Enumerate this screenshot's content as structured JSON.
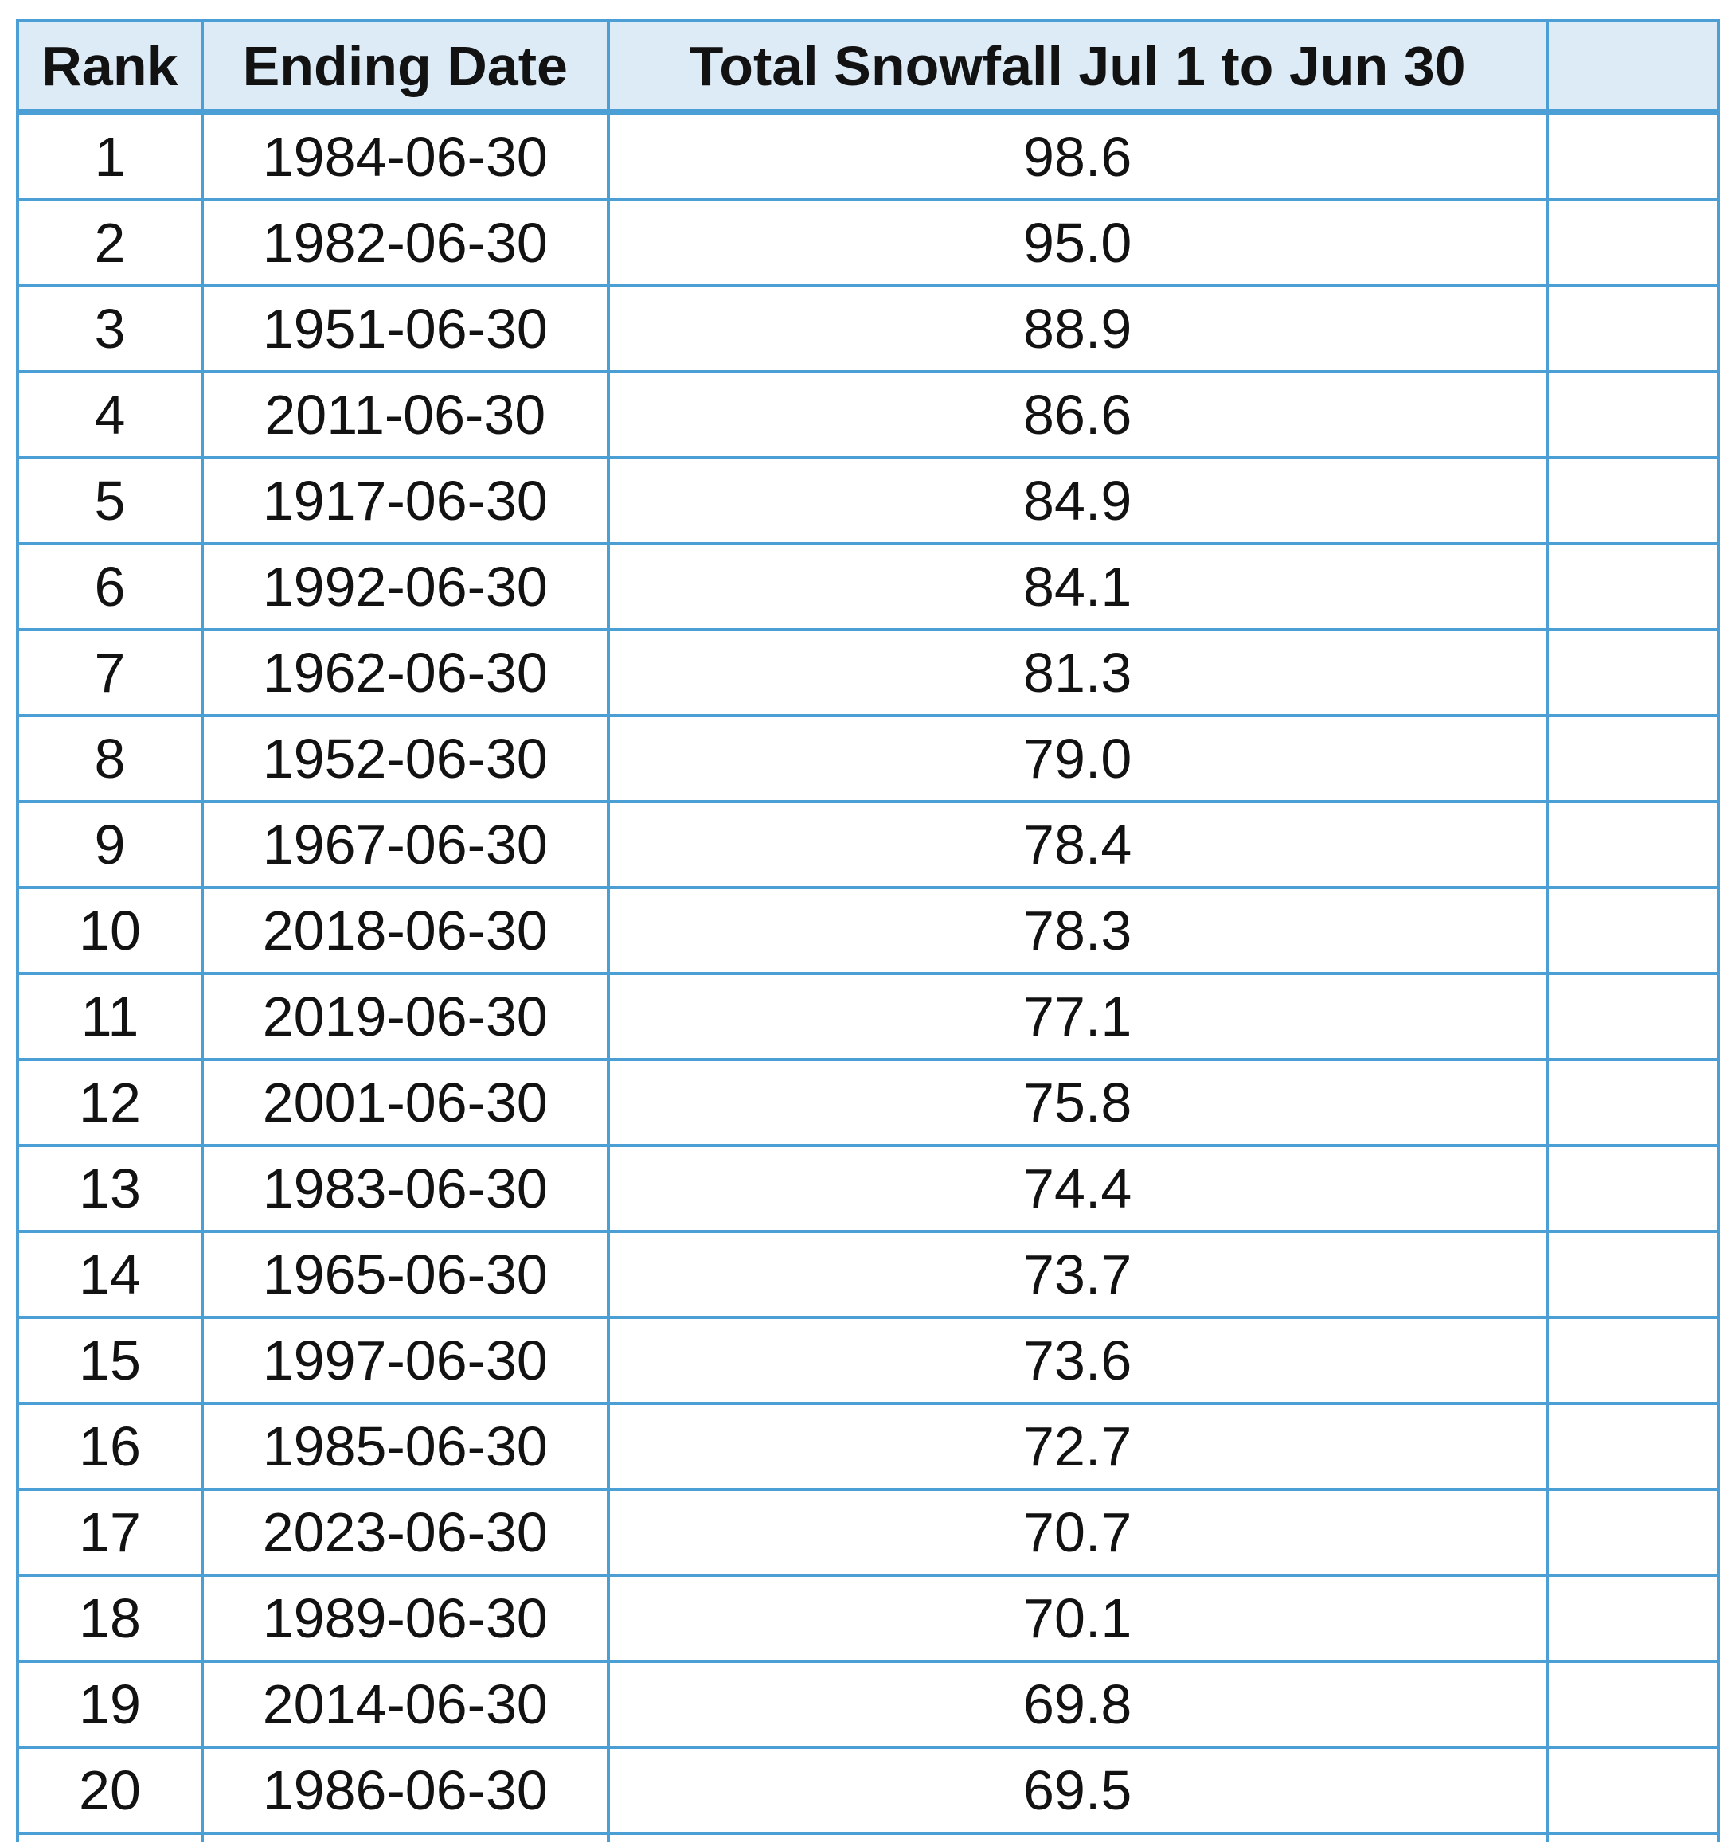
{
  "table": {
    "columns": [
      {
        "key": "rank",
        "label": "Rank"
      },
      {
        "key": "ending_date",
        "label": "Ending Date"
      },
      {
        "key": "total_snowfall",
        "label": "Total Snowfall Jul 1 to Jun 30"
      },
      {
        "key": "extra",
        "label": ""
      }
    ],
    "rows": [
      {
        "rank": "1",
        "ending_date": "1984-06-30",
        "total_snowfall": "98.6"
      },
      {
        "rank": "2",
        "ending_date": "1982-06-30",
        "total_snowfall": "95.0"
      },
      {
        "rank": "3",
        "ending_date": "1951-06-30",
        "total_snowfall": "88.9"
      },
      {
        "rank": "4",
        "ending_date": "2011-06-30",
        "total_snowfall": "86.6"
      },
      {
        "rank": "5",
        "ending_date": "1917-06-30",
        "total_snowfall": "84.9"
      },
      {
        "rank": "6",
        "ending_date": "1992-06-30",
        "total_snowfall": "84.1"
      },
      {
        "rank": "7",
        "ending_date": "1962-06-30",
        "total_snowfall": "81.3"
      },
      {
        "rank": "8",
        "ending_date": "1952-06-30",
        "total_snowfall": "79.0"
      },
      {
        "rank": "9",
        "ending_date": "1967-06-30",
        "total_snowfall": "78.4"
      },
      {
        "rank": "10",
        "ending_date": "2018-06-30",
        "total_snowfall": "78.3"
      },
      {
        "rank": "11",
        "ending_date": "2019-06-30",
        "total_snowfall": "77.1"
      },
      {
        "rank": "12",
        "ending_date": "2001-06-30",
        "total_snowfall": "75.8"
      },
      {
        "rank": "13",
        "ending_date": "1983-06-30",
        "total_snowfall": "74.4"
      },
      {
        "rank": "14",
        "ending_date": "1965-06-30",
        "total_snowfall": "73.7"
      },
      {
        "rank": "15",
        "ending_date": "1997-06-30",
        "total_snowfall": "73.6"
      },
      {
        "rank": "16",
        "ending_date": "1985-06-30",
        "total_snowfall": "72.7"
      },
      {
        "rank": "17",
        "ending_date": "2023-06-30",
        "total_snowfall": "70.7"
      },
      {
        "rank": "18",
        "ending_date": "1989-06-30",
        "total_snowfall": "70.1"
      },
      {
        "rank": "19",
        "ending_date": "2014-06-30",
        "total_snowfall": "69.8"
      },
      {
        "rank": "20",
        "ending_date": "1986-06-30",
        "total_snowfall": "69.5"
      }
    ],
    "partial_row_visible": true
  },
  "colors": {
    "border": "#4c9fd4",
    "header_bg": "#ddebf7",
    "text": "#121212",
    "cell_bg": "#ffffff",
    "page_bg": "#ffffff"
  }
}
